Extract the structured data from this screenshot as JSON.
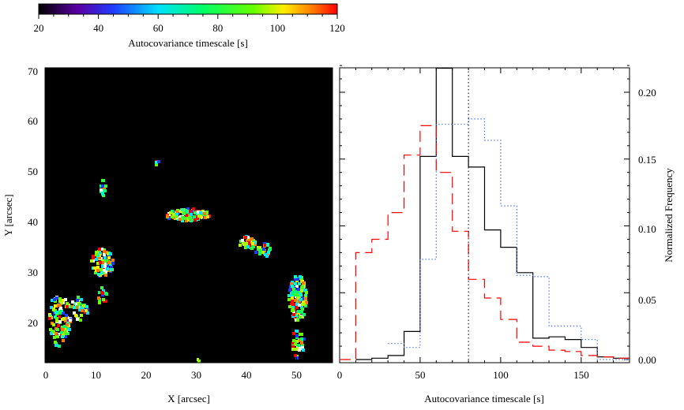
{
  "colorbar": {
    "ticks": [
      "20",
      "40",
      "60",
      "80",
      "100",
      "120"
    ],
    "label": "Autocovariance timescale [s]",
    "range": [
      20,
      120
    ]
  },
  "map_panel": {
    "xlabel": "X [arcsec]",
    "ylabel": "Y [arcsec]",
    "xticks": [
      "0",
      "10",
      "20",
      "30",
      "40",
      "50"
    ],
    "yticks": [
      "20",
      "30",
      "40",
      "50",
      "60",
      "70"
    ],
    "background_color": "#000000"
  },
  "chart_data": {
    "type": "line",
    "xlabel": "Autocovariance timescale [s]",
    "ylabel": "Normalized Frequency",
    "xlim": [
      0,
      180
    ],
    "ylim": [
      0,
      0.22
    ],
    "xticks": [
      "0",
      "50",
      "100",
      "150"
    ],
    "yticks": [
      "0.00",
      "0.05",
      "0.10",
      "0.15",
      "0.20"
    ],
    "step_width": 10,
    "vline": 80,
    "series": [
      {
        "style": "solid",
        "color": "#000000",
        "x": [
          15,
          25,
          35,
          45,
          55,
          65,
          75,
          85,
          95,
          105,
          115,
          125,
          135,
          145,
          155,
          165,
          175
        ],
        "values": [
          0.0,
          0.001,
          0.003,
          0.021,
          0.152,
          0.218,
          0.152,
          0.144,
          0.097,
          0.084,
          0.065,
          0.016,
          0.017,
          0.015,
          0.009,
          0.002,
          0.001
        ]
      },
      {
        "style": "dotted",
        "color": "#4d79ff",
        "x": [
          35,
          45,
          55,
          65,
          75,
          85,
          95,
          105,
          115,
          125,
          135,
          145,
          155,
          165,
          175
        ],
        "values": [
          0.012,
          0.009,
          0.075,
          0.176,
          0.176,
          0.18,
          0.164,
          0.115,
          0.063,
          0.062,
          0.025,
          0.025,
          0.015,
          0.0,
          0.0
        ]
      },
      {
        "style": "dashed",
        "color": "#ff0000",
        "x": [
          5,
          15,
          25,
          35,
          45,
          55,
          65,
          75,
          85,
          95,
          105,
          115,
          125,
          135,
          145,
          155,
          165,
          175
        ],
        "values": [
          0.0,
          0.08,
          0.09,
          0.11,
          0.153,
          0.175,
          0.14,
          0.096,
          0.06,
          0.046,
          0.03,
          0.013,
          0.01,
          0.007,
          0.006,
          0.003,
          0.002,
          0.001
        ]
      }
    ]
  }
}
